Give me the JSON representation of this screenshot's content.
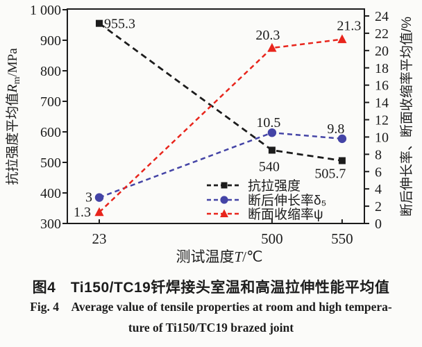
{
  "figure": {
    "caption_zh": "图4　Ti150/TC19钎焊接头室温和高温拉伸性能平均值",
    "caption_en_line1": "Fig. 4　Average value of tensile properties at room and high tempera-",
    "caption_en_line2": "ture of Ti150/TC19 brazed joint"
  },
  "chart_data": {
    "type": "line",
    "categories": [
      "23",
      "500",
      "550"
    ],
    "x_axis": {
      "title_pre": "测试温度",
      "title_sym": "T",
      "title_post": "/℃"
    },
    "left_axis": {
      "title_pre": "抗拉强度平均值",
      "title_sym": "R",
      "title_sub": "m",
      "title_post": "/MPa",
      "min": 300,
      "max": 1000,
      "ticks": [
        {
          "v": 1000,
          "label": "1 000"
        },
        {
          "v": 900,
          "label": "900"
        },
        {
          "v": 800,
          "label": "800"
        },
        {
          "v": 700,
          "label": "700"
        },
        {
          "v": 600,
          "label": "600"
        },
        {
          "v": 500,
          "label": "500"
        },
        {
          "v": 400,
          "label": "400"
        },
        {
          "v": 300,
          "label": "300"
        }
      ]
    },
    "right_axis": {
      "title": "断后伸长率、断面收缩率平均值/%",
      "min": 0,
      "max": 24,
      "ticks": [
        0,
        2,
        4,
        6,
        8,
        10,
        12,
        14,
        16,
        18,
        20,
        22,
        24
      ]
    },
    "series": [
      {
        "name": "抗拉强度",
        "axis": "left",
        "color": "#1c1c1c",
        "marker": "square",
        "values": [
          955.3,
          540,
          505.7
        ],
        "point_labels": [
          "955.3",
          "540",
          "505.7"
        ]
      },
      {
        "name": "断后伸长率δ₅",
        "axis": "right",
        "color": "#4444a6",
        "marker": "circle",
        "values": [
          3,
          10.5,
          9.8
        ],
        "point_labels": [
          "3",
          "10.5",
          "9.8"
        ]
      },
      {
        "name": "断面收缩率ψ",
        "axis": "right",
        "color": "#e8251c",
        "marker": "triangle",
        "values": [
          1.3,
          20.3,
          21.3
        ],
        "point_labels": [
          "1.3",
          "20.3",
          "21.3"
        ]
      }
    ],
    "legend_position": "inside bottom-center",
    "grid": "off"
  }
}
